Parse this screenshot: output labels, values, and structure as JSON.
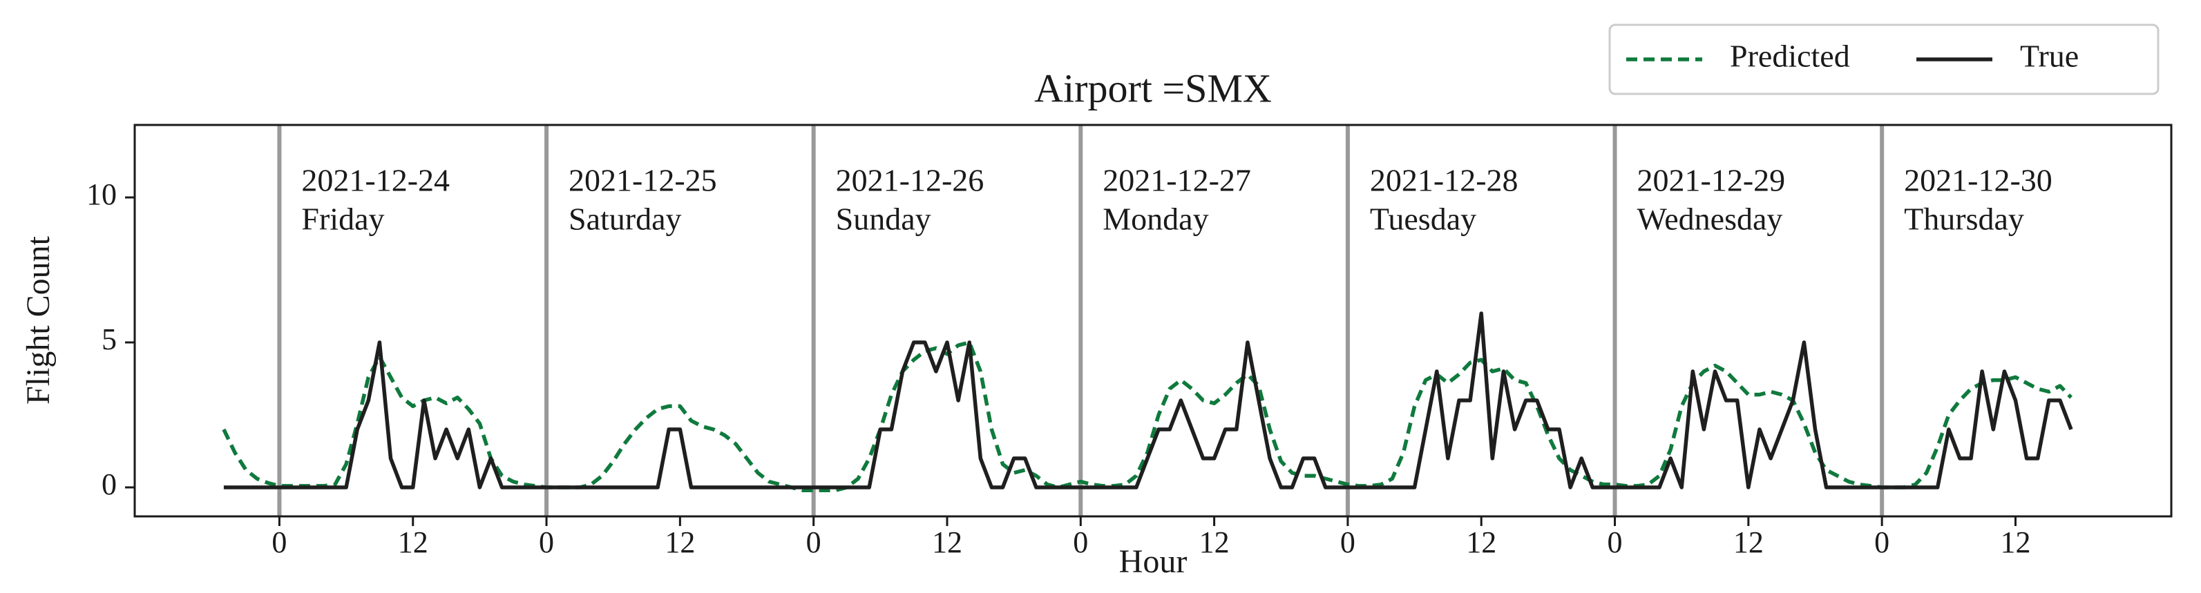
{
  "chart_data": {
    "type": "line",
    "title": "Airport =SMX",
    "x_label": "Hour",
    "y_label": "Flight Count",
    "x": [
      -5,
      -4,
      -3,
      -2,
      -1,
      0,
      1,
      2,
      3,
      4,
      5,
      6,
      7,
      8,
      9,
      10,
      11,
      12,
      13,
      14,
      15,
      16,
      17,
      18,
      19,
      20,
      21,
      22,
      23,
      24,
      25,
      26,
      27,
      28,
      29,
      30,
      31,
      32,
      33,
      34,
      35,
      36,
      37,
      38,
      39,
      40,
      41,
      42,
      43,
      44,
      45,
      46,
      47,
      48,
      49,
      50,
      51,
      52,
      53,
      54,
      55,
      56,
      57,
      58,
      59,
      60,
      61,
      62,
      63,
      64,
      65,
      66,
      67,
      68,
      69,
      70,
      71,
      72,
      73,
      74,
      75,
      76,
      77,
      78,
      79,
      80,
      81,
      82,
      83,
      84,
      85,
      86,
      87,
      88,
      89,
      90,
      91,
      92,
      93,
      94,
      95,
      96,
      97,
      98,
      99,
      100,
      101,
      102,
      103,
      104,
      105,
      106,
      107,
      108,
      109,
      110,
      111,
      112,
      113,
      114,
      115,
      116,
      117,
      118,
      119,
      120,
      121,
      122,
      123,
      124,
      125,
      126,
      127,
      128,
      129,
      130,
      131,
      132,
      133,
      134,
      135,
      136,
      137,
      138,
      139,
      140,
      141,
      142,
      143,
      144,
      145,
      146,
      147,
      148,
      149,
      150,
      151,
      152,
      153,
      154,
      155,
      156,
      157,
      158,
      159,
      160,
      161
    ],
    "series": [
      {
        "name": "Predicted",
        "color": "#0f7a3d",
        "dashed": true,
        "values": [
          2.0,
          1.2,
          0.6,
          0.3,
          0.15,
          0.05,
          0.05,
          0.05,
          0.05,
          0.05,
          0.1,
          0.8,
          2.2,
          3.8,
          4.5,
          3.8,
          3.1,
          2.8,
          3.0,
          3.1,
          2.9,
          3.1,
          2.7,
          2.2,
          1.0,
          0.4,
          0.2,
          0.1,
          0.05,
          0,
          0,
          0,
          0,
          0.1,
          0.4,
          0.9,
          1.5,
          2.0,
          2.4,
          2.7,
          2.8,
          2.8,
          2.3,
          2.1,
          2.0,
          1.8,
          1.5,
          1.0,
          0.5,
          0.2,
          0.1,
          0,
          -0.1,
          -0.1,
          -0.1,
          -0.1,
          0,
          0.3,
          1.0,
          2.0,
          3.2,
          4.0,
          4.4,
          4.7,
          4.8,
          4.6,
          4.9,
          5.0,
          4.0,
          2.0,
          0.8,
          0.5,
          0.6,
          0.4,
          0.1,
          0,
          0.1,
          0.2,
          0.1,
          0.05,
          0.05,
          0.1,
          0.4,
          1.2,
          2.5,
          3.4,
          3.7,
          3.4,
          3.0,
          2.9,
          3.2,
          3.6,
          3.9,
          3.5,
          2.0,
          0.9,
          0.5,
          0.4,
          0.4,
          0.3,
          0.2,
          0.1,
          0.05,
          0.05,
          0.1,
          0.3,
          1.2,
          2.8,
          3.7,
          3.9,
          3.6,
          3.9,
          4.3,
          4.4,
          4.0,
          4.1,
          3.7,
          3.6,
          2.8,
          1.8,
          1.0,
          0.6,
          0.4,
          0.2,
          0.1,
          0.1,
          0.05,
          0.05,
          0.1,
          0.4,
          1.3,
          2.8,
          3.6,
          4.0,
          4.2,
          4.0,
          3.6,
          3.2,
          3.2,
          3.3,
          3.2,
          3.0,
          2.2,
          1.2,
          0.6,
          0.4,
          0.2,
          0.1,
          0.05,
          0,
          0,
          0,
          0.1,
          0.5,
          1.4,
          2.5,
          3.0,
          3.4,
          3.6,
          3.7,
          3.7,
          3.8,
          3.6,
          3.4,
          3.3,
          3.5,
          3.1
        ]
      },
      {
        "name": "True",
        "color": "#1f1f1f",
        "dashed": false,
        "values": [
          0,
          0,
          0,
          0,
          0,
          0,
          0,
          0,
          0,
          0,
          0,
          0,
          2,
          3,
          5,
          1,
          0,
          0,
          3,
          1,
          2,
          1,
          2,
          0,
          1,
          0,
          0,
          0,
          0,
          0,
          0,
          0,
          0,
          0,
          0,
          0,
          0,
          0,
          0,
          0,
          2,
          2,
          0,
          0,
          0,
          0,
          0,
          0,
          0,
          0,
          0,
          0,
          0,
          0,
          0,
          0,
          0,
          0,
          0,
          2,
          2,
          4,
          5,
          5,
          4,
          5,
          3,
          5,
          1,
          0,
          0,
          1,
          1,
          0,
          0,
          0,
          0,
          0,
          0,
          0,
          0,
          0,
          0,
          1,
          2,
          2,
          3,
          2,
          1,
          1,
          2,
          2,
          5,
          3,
          1,
          0,
          0,
          1,
          1,
          0,
          0,
          0,
          0,
          0,
          0,
          0,
          0,
          0,
          2,
          4,
          1,
          3,
          3,
          6,
          1,
          4,
          2,
          3,
          3,
          2,
          2,
          0,
          1,
          0,
          0,
          0,
          0,
          0,
          0,
          0,
          1,
          0,
          4,
          2,
          4,
          3,
          3,
          0,
          2,
          1,
          2,
          3,
          5,
          2,
          0,
          0,
          0,
          0,
          0,
          0,
          0,
          0,
          0,
          0,
          0,
          2,
          1,
          1,
          4,
          2,
          4,
          3,
          1,
          1,
          3,
          3,
          2
        ]
      }
    ],
    "annotations": [
      {
        "x": 0,
        "date": "2021-12-24",
        "day": "Friday"
      },
      {
        "x": 24,
        "date": "2021-12-25",
        "day": "Saturday"
      },
      {
        "x": 48,
        "date": "2021-12-26",
        "day": "Sunday"
      },
      {
        "x": 72,
        "date": "2021-12-27",
        "day": "Monday"
      },
      {
        "x": 96,
        "date": "2021-12-28",
        "day": "Tuesday"
      },
      {
        "x": 120,
        "date": "2021-12-29",
        "day": "Wednesday"
      },
      {
        "x": 144,
        "date": "2021-12-30",
        "day": "Thursday"
      }
    ],
    "xlim": [
      -13,
      170
    ],
    "ylim": [
      -1,
      12.5
    ],
    "xticks": [
      0,
      12,
      {
        "value": 24,
        "label": "0"
      },
      {
        "value": 36,
        "label": "12"
      },
      {
        "value": 48,
        "label": "0"
      },
      {
        "value": 60,
        "label": "12"
      },
      {
        "value": 72,
        "label": "0"
      },
      {
        "value": 84,
        "label": "12"
      },
      {
        "value": 96,
        "label": "0"
      },
      {
        "value": 108,
        "label": "12"
      },
      {
        "value": 120,
        "label": "0"
      },
      {
        "value": 132,
        "label": "12"
      },
      {
        "value": 144,
        "label": "0"
      },
      {
        "value": 156,
        "label": "12"
      }
    ],
    "yticks": [
      0,
      5,
      10
    ],
    "grid": false,
    "legend": "upper right"
  }
}
